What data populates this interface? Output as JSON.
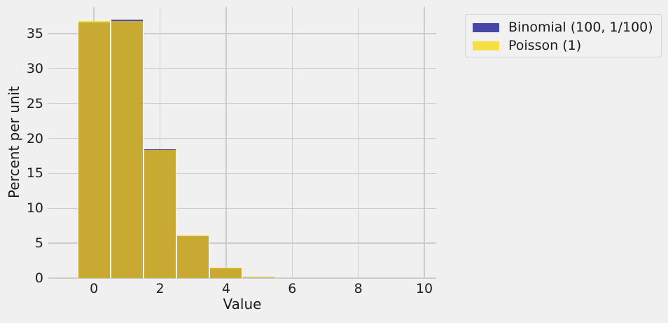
{
  "chart_data": {
    "type": "bar",
    "subtype": "overlaid-histogram",
    "title": "",
    "xlabel": "Value",
    "ylabel": "Percent per unit",
    "x": [
      0,
      1,
      2,
      3,
      4,
      5
    ],
    "series": [
      {
        "name": "Binomial (100, 1/100)",
        "color": "#4c4cae",
        "values": [
          36.6,
          36.97,
          18.49,
          6.1,
          1.49,
          0.29
        ]
      },
      {
        "name": "Poisson (1)",
        "color": "#f5de45",
        "values": [
          36.79,
          36.79,
          18.39,
          6.13,
          1.53,
          0.31
        ]
      }
    ],
    "bar_width": 1,
    "x_ticks": [
      0,
      2,
      4,
      6,
      8,
      10
    ],
    "y_ticks": [
      0,
      5,
      10,
      15,
      20,
      25,
      30,
      35
    ],
    "xlim": [
      -1.38,
      10.36
    ],
    "ylim": [
      0,
      38.8
    ],
    "grid": true,
    "legend_position": "outside-top-right"
  },
  "legend": {
    "items": [
      {
        "label": "Binomial (100, 1/100)",
        "swatch": "#4646a9"
      },
      {
        "label": "Poisson (1)",
        "swatch": "#f6e041"
      }
    ]
  },
  "colors": {
    "background": "#f0f0f0",
    "grid": "#cccccc",
    "overlap": "#c8aa33",
    "binomial_fill": "#4c4cae",
    "poisson_fill": "#f5de45",
    "separator": "#fcfcf6",
    "text": "#1a1a1a"
  }
}
